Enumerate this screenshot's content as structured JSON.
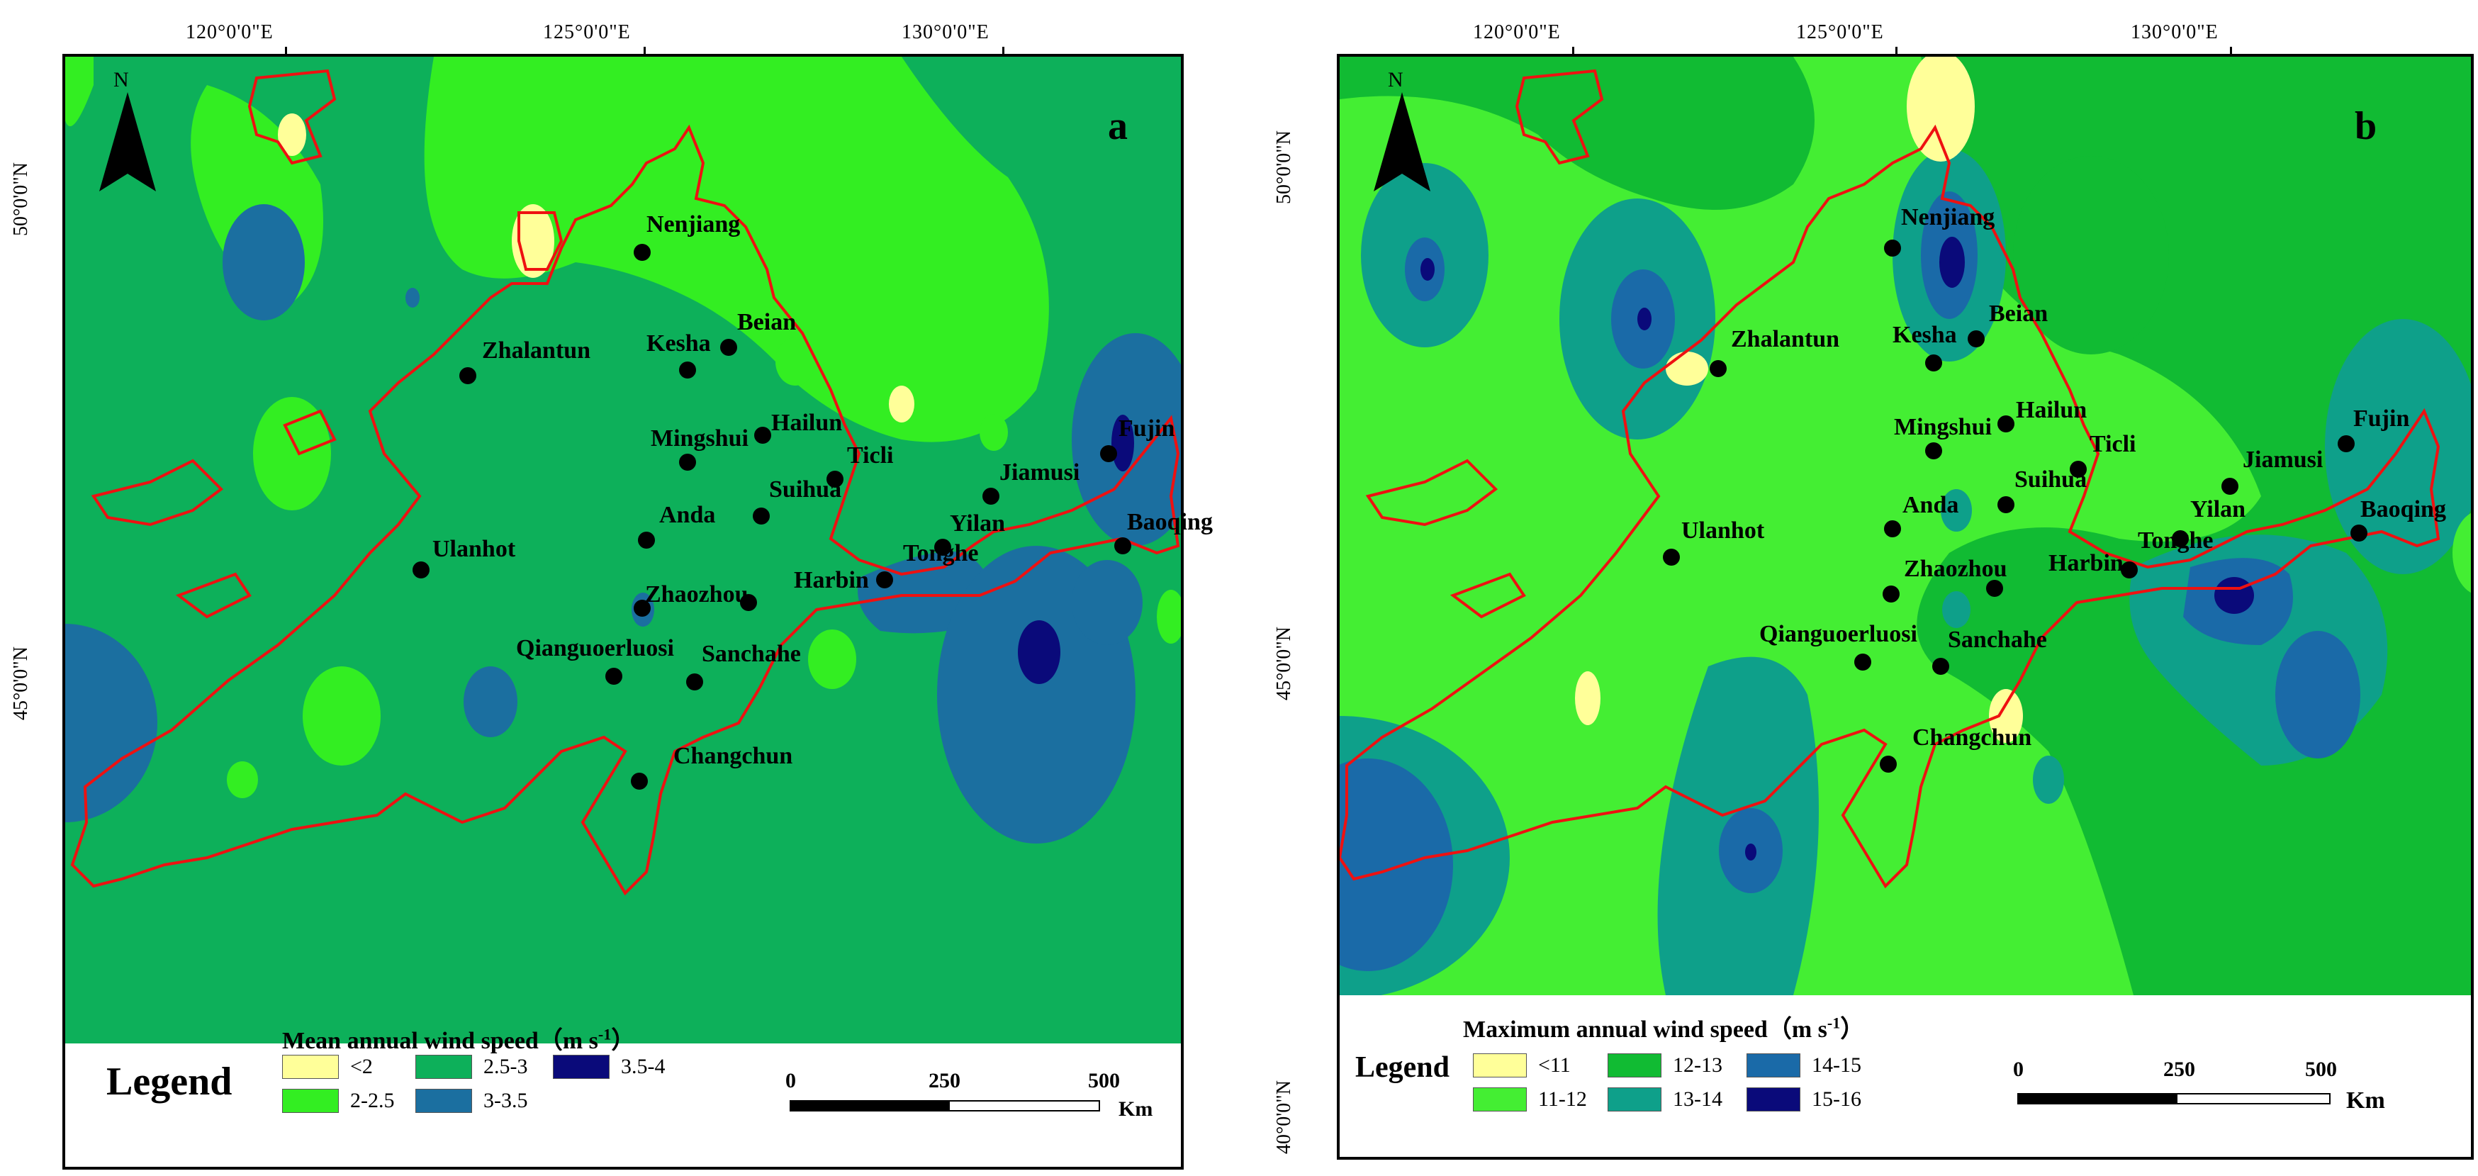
{
  "colors": {
    "lt2": "#ffff99",
    "s2_25": "#33ee22",
    "s25_3": "#0db05a",
    "s3_35": "#1b6fa0",
    "s35_4": "#0a0a7a",
    "lt11": "#ffff99",
    "s11_12": "#44ee33",
    "s12_13": "#11bb33",
    "s13_14": "#0ea08a",
    "s14_15": "#1a6aa8",
    "s15_16": "#0a0a7a",
    "boundary": "#ee1111",
    "city_dot": "#000000"
  },
  "panel_a": {
    "letter": "a",
    "north": "N",
    "lon_ticks": [
      "120°0'0\"E",
      "125°0'0\"E",
      "130°0'0\"E"
    ],
    "lat_ticks": [
      "50°0'0\"N",
      "45°0'0\"N"
    ],
    "cities": [
      "Nenjiang",
      "Kesha",
      "Beian",
      "Zhalantun",
      "Hailun",
      "Mingshui",
      "Ticli",
      "Suihua",
      "Jiamusi",
      "Fujin",
      "Anda",
      "Yilan",
      "Baoqing",
      "Ulanhot",
      "Tonghe",
      "Harbin",
      "Zhaozhou",
      "Qianguoerluosi",
      "Sanchahe",
      "Changchun"
    ],
    "legend": {
      "word": "Legend",
      "title": "Mean annual wind speed（m s",
      "title_sup": "-1",
      "title_close": "）",
      "items": [
        "<2",
        "2-2.5",
        "2.5-3",
        "3-3.5",
        "3.5-4"
      ],
      "item_colors": [
        "lt2",
        "s2_25",
        "s25_3",
        "s3_35",
        "s35_4"
      ]
    },
    "scale": {
      "labels": [
        "0",
        "250",
        "500"
      ],
      "unit": "Km"
    }
  },
  "panel_b": {
    "letter": "b",
    "north": "N",
    "lon_ticks": [
      "120°0'0\"E",
      "125°0'0\"E",
      "130°0'0\"E"
    ],
    "lat_ticks": [
      "50°0'0\"N",
      "45°0'0\"N",
      "40°0'0\"N"
    ],
    "cities": [
      "Nenjiang",
      "Kesha",
      "Beian",
      "Zhalantun",
      "Hailun",
      "Mingshui",
      "Ticli",
      "Suihua",
      "Jiamusi",
      "Fujin",
      "Anda",
      "Yilan",
      "Baoqing",
      "Ulanhot",
      "Tonghe",
      "Harbin",
      "Zhaozhou",
      "Qianguoerluosi",
      "Sanchahe",
      "Changchun"
    ],
    "legend": {
      "word": "Legend",
      "title": "Maximum annual wind speed（m s",
      "title_sup": "-1",
      "title_close": "）",
      "items": [
        "<11",
        "11-12",
        "12-13",
        "13-14",
        "14-15",
        "15-16"
      ],
      "item_colors": [
        "lt11",
        "s11_12",
        "s12_13",
        "s13_14",
        "s14_15",
        "s15_16"
      ]
    },
    "scale": {
      "labels": [
        "0",
        "250",
        "500"
      ],
      "unit": "Km"
    }
  }
}
